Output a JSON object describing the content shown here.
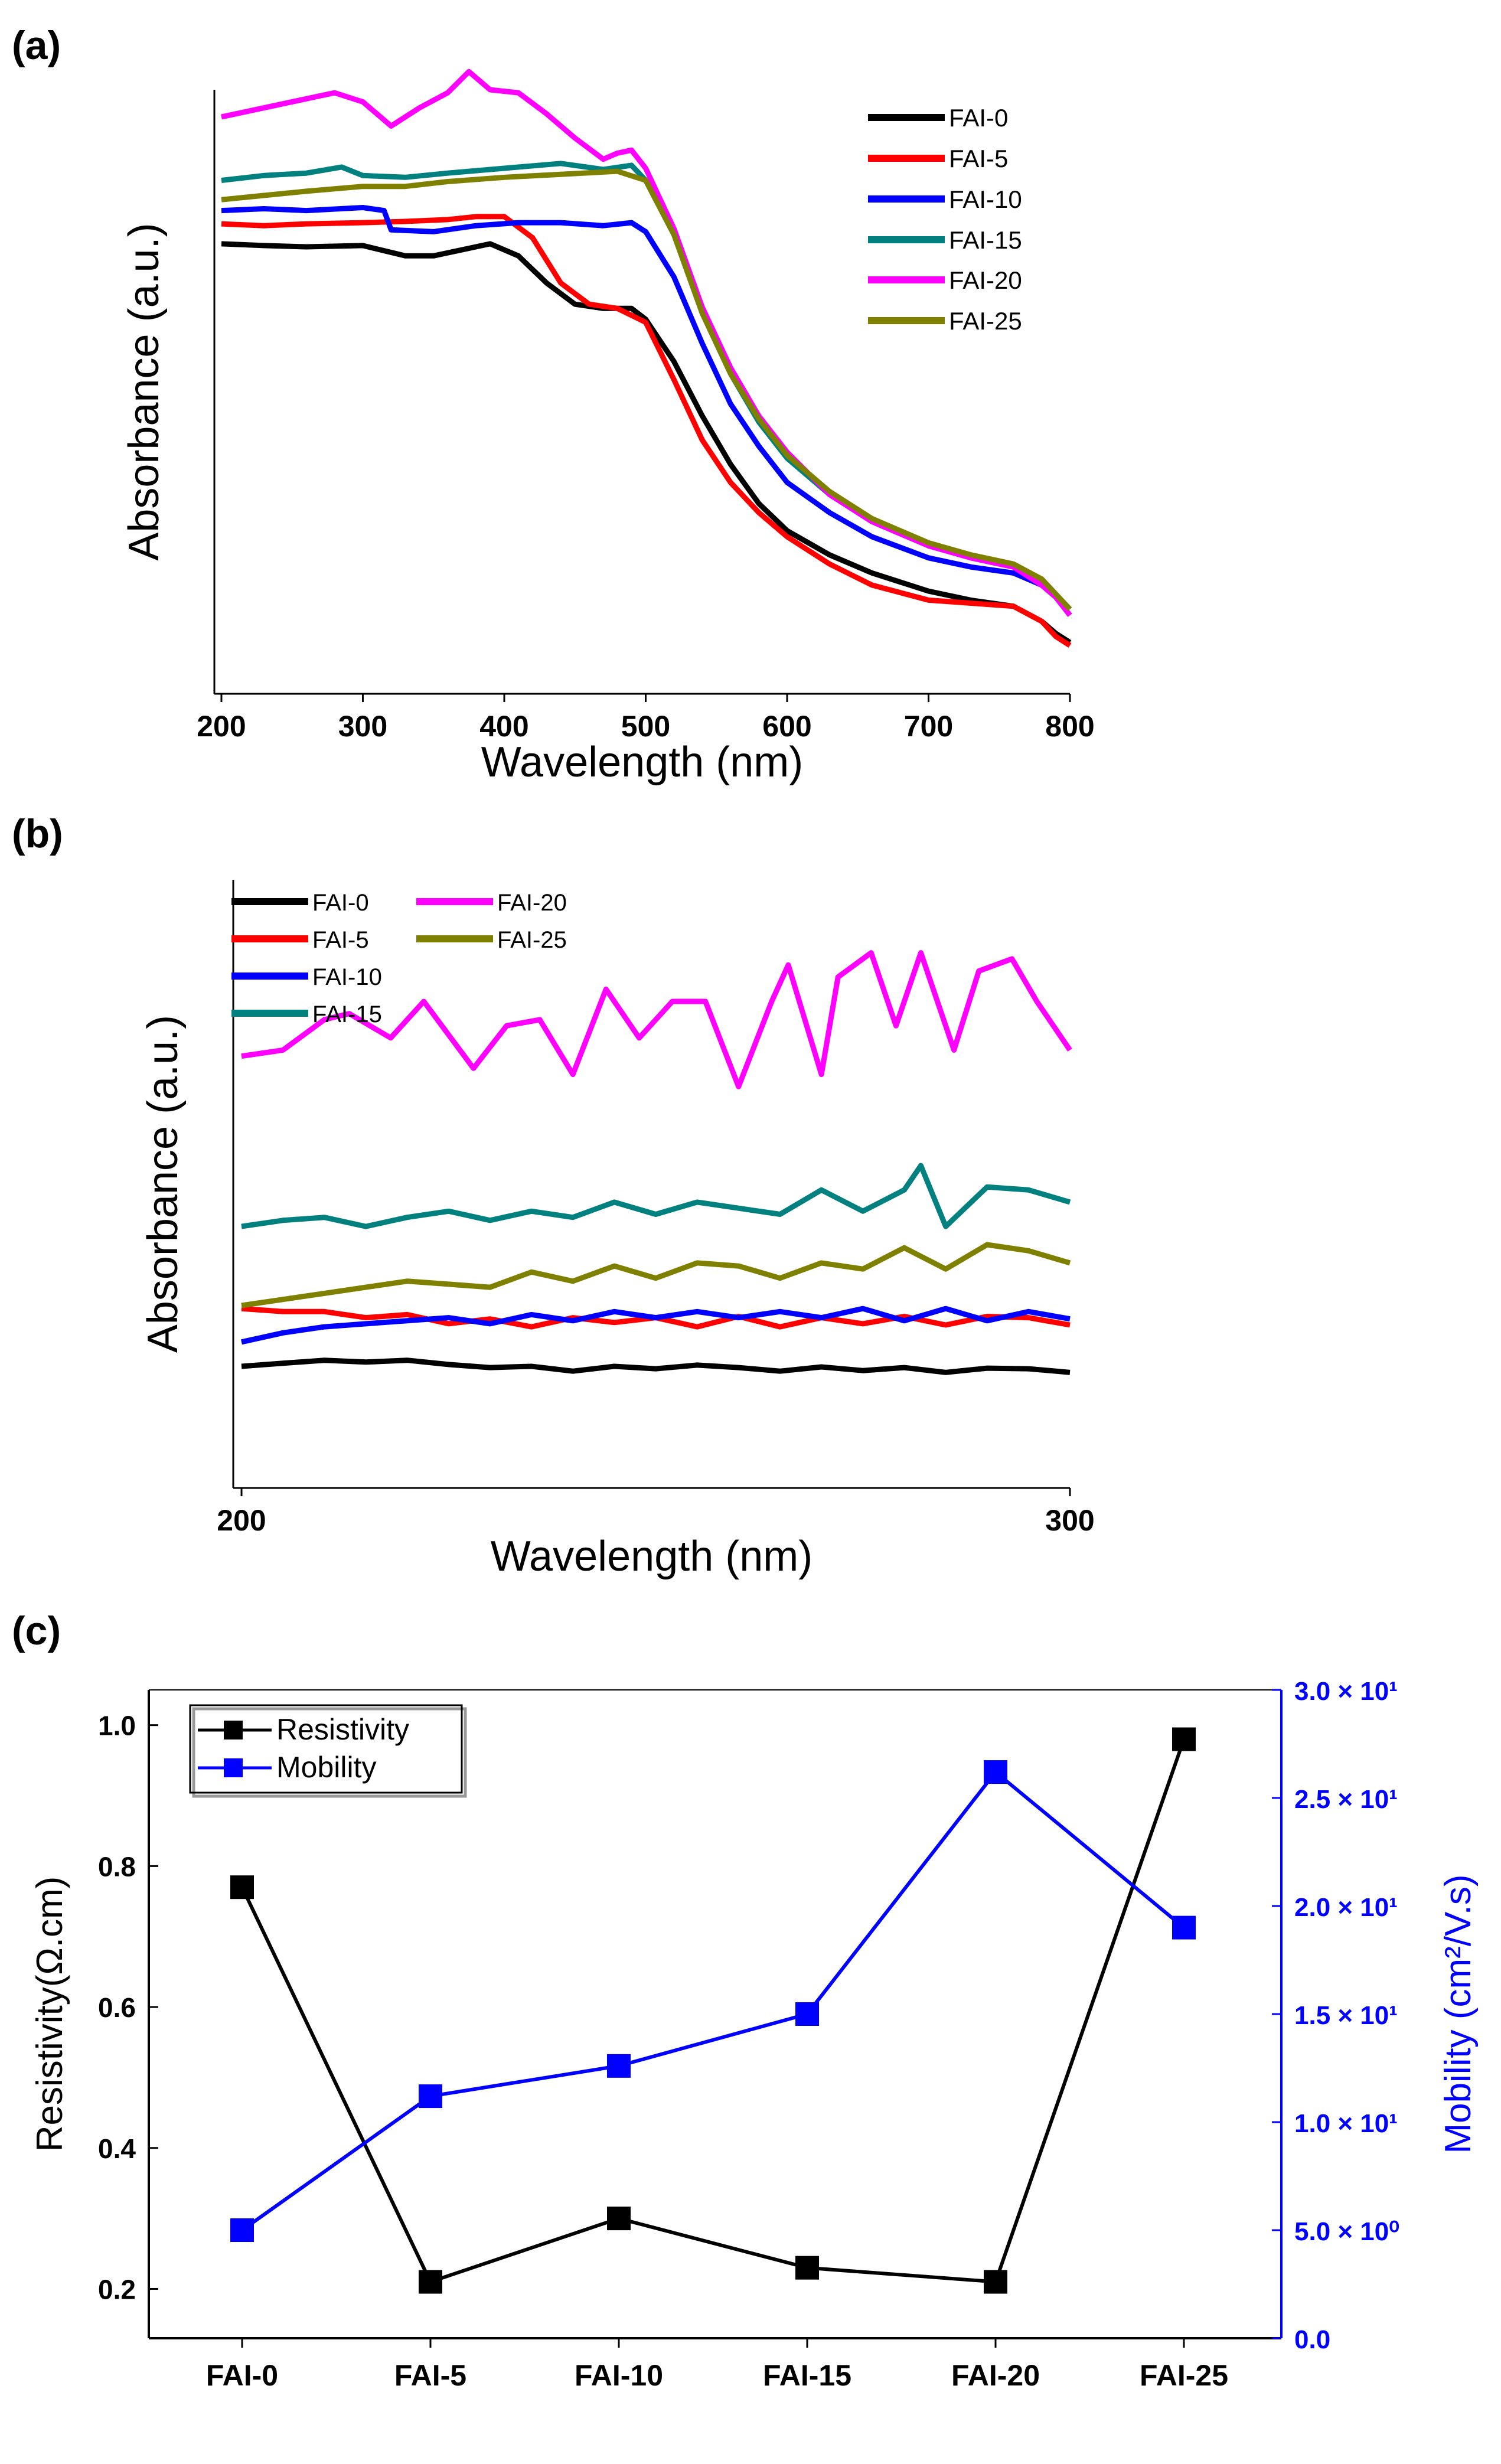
{
  "chart_data": [
    {
      "panel_label": "(a)",
      "type": "line",
      "title": "",
      "xlabel": "Wavelength (nm)",
      "ylabel": "Absorbance (a.u.)",
      "xlim": [
        195,
        800
      ],
      "ylim": [
        0,
        1
      ],
      "xticks": [
        "200",
        "300",
        "400",
        "500",
        "600",
        "700",
        "800"
      ],
      "grid": false,
      "legend_position": "top-right",
      "series": [
        {
          "name": "FAI-0",
          "color": "#000000",
          "x": [
            200,
            230,
            260,
            300,
            330,
            350,
            370,
            390,
            410,
            430,
            450,
            470,
            490,
            500,
            520,
            540,
            560,
            580,
            600,
            630,
            660,
            700,
            730,
            760,
            780,
            790,
            800
          ],
          "y": [
            0.745,
            0.742,
            0.74,
            0.742,
            0.725,
            0.725,
            0.735,
            0.745,
            0.725,
            0.68,
            0.645,
            0.638,
            0.638,
            0.62,
            0.55,
            0.46,
            0.38,
            0.315,
            0.27,
            0.23,
            0.2,
            0.17,
            0.155,
            0.145,
            0.12,
            0.1,
            0.085
          ]
        },
        {
          "name": "FAI-5",
          "color": "#ff0000",
          "x": [
            200,
            230,
            260,
            300,
            330,
            360,
            380,
            400,
            420,
            440,
            460,
            480,
            500,
            520,
            540,
            560,
            580,
            600,
            630,
            660,
            700,
            730,
            760,
            780,
            790,
            800
          ],
          "y": [
            0.778,
            0.775,
            0.778,
            0.78,
            0.782,
            0.785,
            0.79,
            0.79,
            0.755,
            0.68,
            0.645,
            0.638,
            0.615,
            0.52,
            0.42,
            0.35,
            0.3,
            0.26,
            0.215,
            0.18,
            0.155,
            0.15,
            0.145,
            0.12,
            0.095,
            0.08
          ]
        },
        {
          "name": "FAI-10",
          "color": "#0000ff",
          "x": [
            200,
            230,
            260,
            300,
            315,
            320,
            350,
            380,
            410,
            440,
            470,
            490,
            500,
            520,
            540,
            560,
            580,
            600,
            630,
            660,
            700,
            730,
            760,
            780,
            790,
            800
          ],
          "y": [
            0.8,
            0.803,
            0.8,
            0.805,
            0.8,
            0.768,
            0.765,
            0.775,
            0.78,
            0.78,
            0.775,
            0.78,
            0.765,
            0.69,
            0.58,
            0.48,
            0.41,
            0.35,
            0.3,
            0.26,
            0.225,
            0.21,
            0.2,
            0.18,
            0.16,
            0.13
          ]
        },
        {
          "name": "FAI-15",
          "color": "#00807f",
          "x": [
            200,
            230,
            260,
            285,
            300,
            330,
            360,
            400,
            440,
            470,
            490,
            500,
            520,
            540,
            560,
            580,
            600,
            630,
            660,
            700,
            730,
            760,
            780,
            790,
            800
          ],
          "y": [
            0.85,
            0.858,
            0.862,
            0.872,
            0.858,
            0.855,
            0.862,
            0.87,
            0.878,
            0.868,
            0.875,
            0.85,
            0.76,
            0.63,
            0.53,
            0.45,
            0.39,
            0.33,
            0.285,
            0.245,
            0.225,
            0.21,
            0.19,
            0.165,
            0.14
          ]
        },
        {
          "name": "FAI-20",
          "color": "#ff00ff",
          "x": [
            200,
            230,
            260,
            280,
            300,
            320,
            340,
            360,
            375,
            390,
            410,
            430,
            450,
            470,
            480,
            490,
            500,
            520,
            540,
            560,
            580,
            600,
            630,
            660,
            700,
            730,
            760,
            780,
            790,
            800
          ],
          "y": [
            0.955,
            0.97,
            0.985,
            0.995,
            0.98,
            0.94,
            0.97,
            0.995,
            1.03,
            1.0,
            0.995,
            0.96,
            0.92,
            0.885,
            0.895,
            0.9,
            0.87,
            0.77,
            0.64,
            0.54,
            0.46,
            0.4,
            0.33,
            0.285,
            0.245,
            0.225,
            0.21,
            0.18,
            0.16,
            0.13
          ]
        },
        {
          "name": "FAI-25",
          "color": "#808000",
          "x": [
            200,
            230,
            260,
            300,
            330,
            360,
            400,
            440,
            480,
            500,
            520,
            540,
            560,
            580,
            600,
            630,
            660,
            700,
            730,
            760,
            780,
            790,
            800
          ],
          "y": [
            0.818,
            0.825,
            0.832,
            0.84,
            0.84,
            0.848,
            0.855,
            0.86,
            0.865,
            0.85,
            0.76,
            0.63,
            0.53,
            0.455,
            0.395,
            0.335,
            0.29,
            0.25,
            0.23,
            0.215,
            0.19,
            0.165,
            0.14
          ]
        }
      ]
    },
    {
      "panel_label": "(b)",
      "type": "line",
      "title": "",
      "xlabel": "Wavelength (nm)",
      "ylabel": "Absorbance (a.u.)",
      "xlim": [
        199,
        300
      ],
      "ylim": [
        0,
        1
      ],
      "xticks": [
        "200",
        "300"
      ],
      "grid": false,
      "legend_position": "top-left",
      "series": [
        {
          "name": "FAI-0",
          "color": "#000000",
          "x": [
            200,
            205,
            210,
            215,
            220,
            225,
            230,
            235,
            240,
            245,
            250,
            255,
            260,
            265,
            270,
            275,
            280,
            285,
            290,
            295,
            300
          ],
          "y": [
            0.2,
            0.205,
            0.21,
            0.207,
            0.21,
            0.203,
            0.198,
            0.2,
            0.192,
            0.2,
            0.196,
            0.202,
            0.198,
            0.192,
            0.199,
            0.193,
            0.198,
            0.19,
            0.197,
            0.196,
            0.19
          ]
        },
        {
          "name": "FAI-5",
          "color": "#ff0000",
          "x": [
            200,
            205,
            210,
            215,
            220,
            225,
            230,
            235,
            240,
            245,
            250,
            255,
            260,
            265,
            270,
            275,
            280,
            285,
            290,
            295,
            300
          ],
          "y": [
            0.295,
            0.29,
            0.29,
            0.28,
            0.285,
            0.27,
            0.278,
            0.265,
            0.28,
            0.272,
            0.28,
            0.265,
            0.282,
            0.265,
            0.28,
            0.27,
            0.282,
            0.268,
            0.282,
            0.28,
            0.268
          ]
        },
        {
          "name": "FAI-10",
          "color": "#0000ff",
          "x": [
            200,
            205,
            210,
            215,
            220,
            225,
            230,
            235,
            240,
            245,
            250,
            255,
            260,
            265,
            270,
            275,
            280,
            285,
            290,
            295,
            300
          ],
          "y": [
            0.24,
            0.255,
            0.265,
            0.27,
            0.275,
            0.28,
            0.27,
            0.285,
            0.275,
            0.29,
            0.28,
            0.29,
            0.28,
            0.29,
            0.28,
            0.295,
            0.275,
            0.295,
            0.275,
            0.29,
            0.278
          ]
        },
        {
          "name": "FAI-15",
          "color": "#00807f",
          "x": [
            200,
            205,
            210,
            215,
            220,
            225,
            230,
            235,
            240,
            245,
            250,
            255,
            260,
            265,
            270,
            275,
            280,
            282,
            285,
            290,
            295,
            300
          ],
          "y": [
            0.43,
            0.44,
            0.445,
            0.43,
            0.445,
            0.455,
            0.44,
            0.455,
            0.445,
            0.47,
            0.45,
            0.47,
            0.46,
            0.45,
            0.49,
            0.455,
            0.49,
            0.53,
            0.43,
            0.495,
            0.49,
            0.47
          ]
        },
        {
          "name": "FAI-20",
          "color": "#ff00ff",
          "x": [
            200,
            205,
            210,
            213,
            218,
            222,
            228,
            232,
            236,
            240,
            244,
            248,
            252,
            256,
            260,
            264,
            266,
            270,
            272,
            276,
            279,
            282,
            286,
            289,
            293,
            296,
            300
          ],
          "y": [
            0.71,
            0.72,
            0.77,
            0.78,
            0.74,
            0.8,
            0.69,
            0.76,
            0.77,
            0.68,
            0.82,
            0.74,
            0.8,
            0.8,
            0.66,
            0.8,
            0.86,
            0.68,
            0.84,
            0.88,
            0.76,
            0.88,
            0.72,
            0.85,
            0.87,
            0.8,
            0.72
          ]
        },
        {
          "name": "FAI-25",
          "color": "#808000",
          "x": [
            200,
            205,
            210,
            215,
            220,
            225,
            230,
            235,
            240,
            245,
            250,
            255,
            260,
            265,
            270,
            275,
            280,
            285,
            290,
            295,
            300
          ],
          "y": [
            0.3,
            0.31,
            0.32,
            0.33,
            0.34,
            0.335,
            0.33,
            0.355,
            0.34,
            0.365,
            0.345,
            0.37,
            0.365,
            0.345,
            0.37,
            0.36,
            0.395,
            0.36,
            0.4,
            0.39,
            0.37
          ]
        }
      ]
    },
    {
      "panel_label": "(c)",
      "type": "line",
      "title": "",
      "xlabel": "",
      "categories": [
        "FAI-0",
        "FAI-5",
        "FAI-10",
        "FAI-15",
        "FAI-20",
        "FAI-25"
      ],
      "ylabel": "Resistivity(Ω.cm)",
      "ylim": [
        0.13,
        1.05
      ],
      "yticks": [
        "0.2",
        "0.4",
        "0.6",
        "0.8",
        "1.0"
      ],
      "ylabel_right": "Mobility (cm²/V.s)",
      "ylim_right": [
        0,
        30
      ],
      "yticks_right": [
        "0.0",
        "5.0 × 10⁰",
        "1.0 × 10¹",
        "1.5 × 10¹",
        "2.0 × 10¹",
        "2.5 × 10¹",
        "3.0 × 10¹"
      ],
      "legend_position": "top-left",
      "series": [
        {
          "name": "Resistivity",
          "axis": "left",
          "color": "#000000",
          "values": [
            0.77,
            0.21,
            0.3,
            0.23,
            0.21,
            0.98
          ]
        },
        {
          "name": "Mobility",
          "axis": "right",
          "color": "#0000ff",
          "values": [
            5.0,
            11.2,
            12.6,
            15.0,
            26.2,
            19.0
          ]
        }
      ]
    }
  ]
}
